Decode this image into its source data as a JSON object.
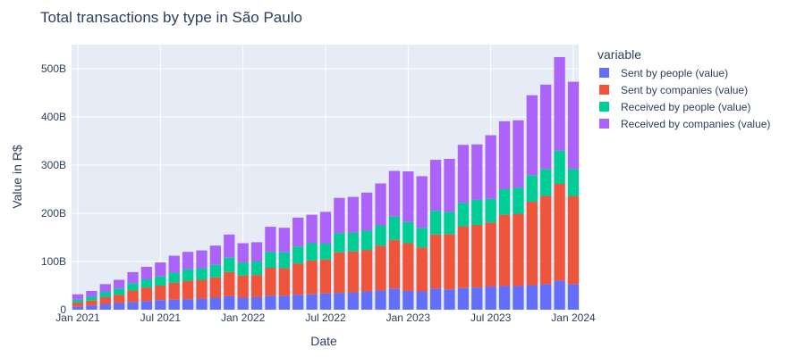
{
  "chart_data": {
    "type": "bar",
    "stacked": true,
    "title": "Total transactions by type in São Paulo",
    "xlabel": "Date",
    "ylabel": "Value in R$",
    "ylim": [
      0,
      550
    ],
    "y_unit_suffix": "B",
    "y_ticks": [
      0,
      100,
      200,
      300,
      400,
      500
    ],
    "x_ticks": [
      {
        "label": "Jan 2021",
        "date": "2021-01"
      },
      {
        "label": "Jul 2021",
        "date": "2021-07"
      },
      {
        "label": "Jan 2022",
        "date": "2022-01"
      },
      {
        "label": "Jul 2022",
        "date": "2022-07"
      },
      {
        "label": "Jan 2023",
        "date": "2023-01"
      },
      {
        "label": "Jul 2023",
        "date": "2023-07"
      },
      {
        "label": "Jan 2024",
        "date": "2024-01"
      }
    ],
    "legend": {
      "title": "variable",
      "position": "right"
    },
    "grid": true,
    "x": [
      "2021-01",
      "2021-02",
      "2021-03",
      "2021-04",
      "2021-05",
      "2021-06",
      "2021-07",
      "2021-08",
      "2021-09",
      "2021-10",
      "2021-11",
      "2021-12",
      "2022-01",
      "2022-02",
      "2022-03",
      "2022-04",
      "2022-05",
      "2022-06",
      "2022-07",
      "2022-08",
      "2022-09",
      "2022-10",
      "2022-11",
      "2022-12",
      "2023-01",
      "2023-02",
      "2023-03",
      "2023-04",
      "2023-05",
      "2023-06",
      "2023-07",
      "2023-08",
      "2023-09",
      "2023-10",
      "2023-11",
      "2023-12",
      "2024-01"
    ],
    "series": [
      {
        "name": "Sent by people (value)",
        "color": "#636efa",
        "values": [
          7,
          9,
          12,
          14,
          16,
          18,
          20,
          21,
          22,
          23,
          25,
          28,
          25,
          26,
          29,
          29,
          31,
          32,
          34,
          35,
          36,
          38,
          40,
          44,
          39,
          38,
          44,
          42,
          45,
          46,
          48,
          49,
          49,
          51,
          53,
          60,
          53
        ]
      },
      {
        "name": "Sent by companies (value)",
        "color": "#ef553b",
        "values": [
          8,
          10,
          14,
          17,
          24,
          28,
          30,
          35,
          38,
          39,
          42,
          50,
          46,
          46,
          58,
          57,
          65,
          70,
          70,
          84,
          85,
          86,
          93,
          101,
          99,
          91,
          112,
          115,
          128,
          130,
          133,
          148,
          150,
          173,
          183,
          201,
          183
        ]
      },
      {
        "name": "Received by people (value)",
        "color": "#00cc96",
        "values": [
          6,
          8,
          11,
          13,
          15,
          17,
          19,
          21,
          24,
          24,
          26,
          30,
          27,
          28,
          33,
          33,
          35,
          36,
          33,
          40,
          39,
          40,
          42,
          48,
          44,
          41,
          49,
          46,
          49,
          52,
          49,
          53,
          54,
          55,
          56,
          69,
          56
        ]
      },
      {
        "name": "Received by companies (value)",
        "color": "#ab63fa",
        "values": [
          11,
          12,
          16,
          18,
          23,
          26,
          29,
          35,
          36,
          37,
          40,
          48,
          40,
          40,
          52,
          51,
          60,
          59,
          66,
          73,
          74,
          79,
          87,
          95,
          105,
          107,
          106,
          110,
          120,
          115,
          132,
          141,
          140,
          166,
          175,
          194,
          181
        ]
      }
    ]
  }
}
